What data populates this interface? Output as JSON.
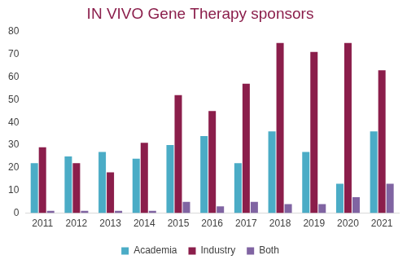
{
  "chart_data": {
    "type": "bar",
    "title": "IN VIVO Gene Therapy sponsors",
    "categories": [
      "2011",
      "2012",
      "2013",
      "2014",
      "2015",
      "2016",
      "2017",
      "2018",
      "2019",
      "2020",
      "2021"
    ],
    "series": [
      {
        "name": "Academia",
        "color": "#4bacc6",
        "values": [
          22,
          25,
          27,
          24,
          30,
          34,
          22,
          36,
          27,
          13,
          36
        ]
      },
      {
        "name": "Industry",
        "color": "#8b1e4b",
        "values": [
          29,
          22,
          18,
          31,
          52,
          45,
          57,
          75,
          71,
          75,
          63
        ]
      },
      {
        "name": "Both",
        "color": "#8064a2",
        "values": [
          1,
          1,
          1,
          1,
          5,
          3,
          5,
          4,
          4,
          7,
          13
        ]
      }
    ],
    "ylim": [
      0,
      80
    ],
    "yticks": [
      0,
      10,
      20,
      30,
      40,
      50,
      60,
      70,
      80
    ],
    "grid": false,
    "legend": "bottom"
  }
}
